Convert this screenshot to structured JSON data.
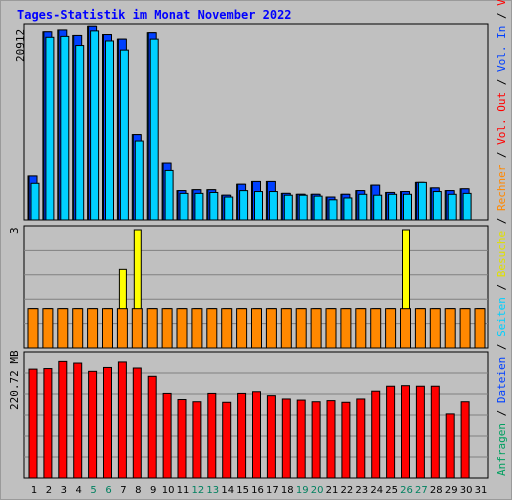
{
  "title": "Tages-Statistik im Monat November 2022",
  "colors": {
    "background": "#c0c0c0",
    "title": "#0000ff",
    "hits": "#00a060",
    "files": "#0040ff",
    "pages": "#00d0ff",
    "visits": "#ffff00",
    "sites": "#ff8800",
    "kbytes": "#ff0000",
    "weekend_day": "#00805f"
  },
  "panels": {
    "top": {
      "max_label": "20912"
    },
    "middle": {
      "max_label": "3"
    },
    "bottom": {
      "max_label": "220.72 MB"
    }
  },
  "legend": {
    "right_top": [
      {
        "text": "Anfragen",
        "color": "#00a060"
      },
      {
        "text": " / ",
        "color": "#000000"
      },
      {
        "text": "Dateien",
        "color": "#0040ff"
      },
      {
        "text": " / ",
        "color": "#000000"
      },
      {
        "text": "Seiten",
        "color": "#00d0ff"
      },
      {
        "text": " / ",
        "color": "#000000"
      },
      {
        "text": "Besuche",
        "color": "#e0e000"
      },
      {
        "text": " / ",
        "color": "#000000"
      },
      {
        "text": "Rechner",
        "color": "#ff8800"
      },
      {
        "text": " / ",
        "color": "#000000"
      },
      {
        "text": "Vol. Out",
        "color": "#ff0000"
      },
      {
        "text": " / ",
        "color": "#000000"
      },
      {
        "text": "Vol. In",
        "color": "#0040ff"
      },
      {
        "text": " / ",
        "color": "#000000"
      },
      {
        "text": "Volumen",
        "color": "#ff0000"
      }
    ]
  },
  "chart_data": {
    "type": "bar",
    "x": [
      "1",
      "2",
      "3",
      "4",
      "5",
      "6",
      "7",
      "8",
      "9",
      "10",
      "11",
      "12",
      "13",
      "14",
      "15",
      "16",
      "17",
      "18",
      "19",
      "20",
      "21",
      "22",
      "23",
      "24",
      "25",
      "26",
      "27",
      "28",
      "29",
      "30",
      "31"
    ],
    "weekend_days": [
      "5",
      "6",
      "12",
      "13",
      "19",
      "20",
      "26",
      "27"
    ],
    "panels": [
      {
        "name": "requests",
        "ylim": [
          0,
          20912
        ],
        "series": [
          {
            "name": "Anfragen",
            "values": [
              4800,
              20500,
              20700,
              20100,
              21100,
              20200,
              19700,
              9300,
              20400,
              6200,
              3200,
              3300,
              3300,
              2700,
              3900,
              4200,
              4200,
              2900,
              2800,
              2800,
              2500,
              2800,
              3200,
              3800,
              3000,
              3100,
              4100,
              3500,
              3200,
              3400,
              0
            ]
          },
          {
            "name": "Dateien",
            "values": [
              4800,
              20500,
              20700,
              20100,
              21100,
              20200,
              19700,
              9300,
              20400,
              6200,
              3200,
              3300,
              3300,
              2700,
              3900,
              4200,
              4200,
              2900,
              2800,
              2800,
              2500,
              2800,
              3200,
              3800,
              3000,
              3100,
              4100,
              3500,
              3200,
              3400,
              0
            ]
          },
          {
            "name": "Seiten",
            "values": [
              4000,
              19900,
              20000,
              19000,
              20600,
              19500,
              18500,
              8600,
              19700,
              5400,
              2900,
              2900,
              3000,
              2500,
              3200,
              3100,
              3100,
              2700,
              2700,
              2600,
              2200,
              2400,
              2800,
              2700,
              2800,
              2800,
              4100,
              3100,
              2800,
              2900,
              0
            ]
          }
        ]
      },
      {
        "name": "visits",
        "ylim": [
          0,
          3
        ],
        "series": [
          {
            "name": "Besuche",
            "values": [
              1,
              1,
              1,
              1,
              1,
              1,
              2,
              3,
              1,
              1,
              1,
              1,
              1,
              1,
              1,
              1,
              1,
              1,
              1,
              1,
              1,
              1,
              1,
              1,
              1,
              3,
              1,
              1,
              1,
              1,
              1
            ]
          },
          {
            "name": "Rechner",
            "values": [
              1,
              1,
              1,
              1,
              1,
              1,
              1,
              1,
              1,
              1,
              1,
              1,
              1,
              1,
              1,
              1,
              1,
              1,
              1,
              1,
              1,
              1,
              1,
              1,
              1,
              1,
              1,
              1,
              1,
              1,
              1
            ]
          }
        ]
      },
      {
        "name": "volume",
        "ylim": [
          0,
          220.72
        ],
        "unit": "MB",
        "series": [
          {
            "name": "Volumen",
            "values": [
              197,
              198,
              211,
              208,
              193,
              200,
              210,
              199,
              184,
              153,
              142,
              138,
              153,
              137,
              153,
              156,
              149,
              143,
              141,
              138,
              140,
              137,
              143,
              157,
              166,
              167,
              166,
              166,
              116,
              138,
              0
            ]
          }
        ]
      }
    ]
  }
}
